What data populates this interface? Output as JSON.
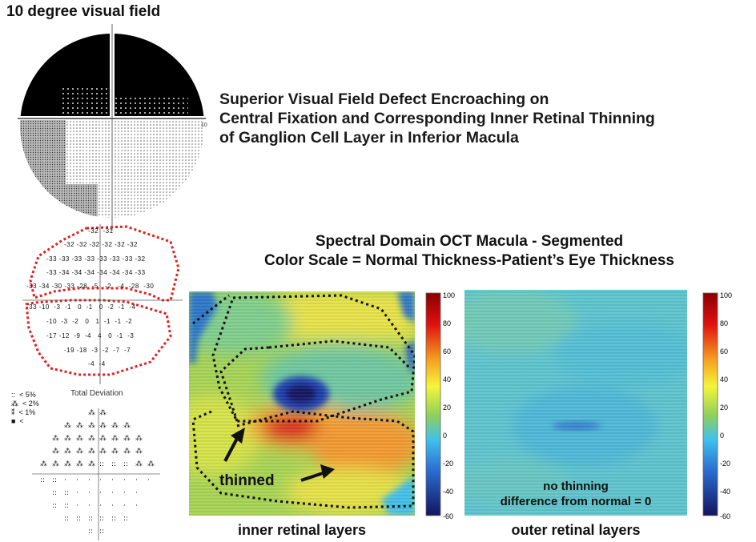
{
  "field_title": "10 degree visual field",
  "headline": {
    "lines": [
      "Superior Visual Field Defect Encroaching on",
      "Central Fixation and Corresponding Inner Retinal Thinning",
      "of Ganglion Cell Layer in Inferior Macula"
    ]
  },
  "oct_title": {
    "lines": [
      "Spectral Domain OCT Macula - Segmented",
      "Color Scale = Normal Thickness-Patient’s Eye Thickness"
    ]
  },
  "field_axis_label": "10",
  "total_deviation": {
    "label": "Total Deviation",
    "rows": [
      "-32  -31",
      "-32 -32 -32 -32 -32 -32",
      "-33 -33 -33 -33 -33 -33 -33 -32",
      "-33 -34 -34 -34 -34 -34 -34 -33",
      "-33 -34 -30 -33 -28  -5   -2   -4  -28  -30",
      "-33 -10  -3  -1   0  -1   0  -2  -1  -4",
      "-10  -3  -2   0   1  -1  -1  -2",
      "-17 -12  -9  -4   4   0  -1  -3",
      "-19 -18  -3  -2  -7  -7",
      "-4  -4"
    ]
  },
  "probability_legend": [
    "::  < 5%",
    "⁂  < 2%",
    "⁑  < 1%",
    "■  <"
  ],
  "inner_panel": {
    "caption": "inner retinal layers",
    "annotation": "thinned",
    "scale_ticks": [
      "100",
      "80",
      "60",
      "40",
      "20",
      "0",
      "-20",
      "-40",
      "-60"
    ]
  },
  "outer_panel": {
    "caption": "outer retinal layers",
    "annotation_lines": [
      "no thinning",
      "difference from normal = 0"
    ],
    "scale_ticks": [
      "100",
      "80",
      "60",
      "40",
      "20",
      "0",
      "-20",
      "-40",
      "-60"
    ]
  },
  "colors": {
    "scale_high": "#8b0000",
    "scale_mid": "#f5f53a",
    "scale_zero": "#3fc0ee",
    "scale_low": "#14145f",
    "defect_outline": "#e02020"
  }
}
